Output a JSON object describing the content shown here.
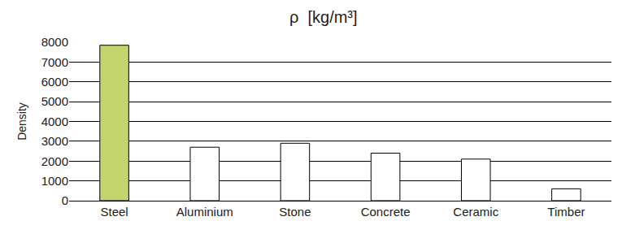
{
  "chart_data": {
    "type": "bar",
    "title": "ρ  [kg/m³]",
    "y_label": "Density",
    "categories": [
      "Steel",
      "Aluminium",
      "Stone",
      "Concrete",
      "Ceramic",
      "Timber"
    ],
    "values": [
      7850,
      2700,
      2900,
      2400,
      2100,
      600
    ],
    "colors": [
      "#c3d46e",
      "#ffffff",
      "#ffffff",
      "#ffffff",
      "#ffffff",
      "#ffffff"
    ],
    "ylim": [
      0,
      8000
    ],
    "yticks": [
      0,
      1000,
      2000,
      3000,
      4000,
      5000,
      6000,
      7000,
      8000
    ],
    "grid": true
  }
}
